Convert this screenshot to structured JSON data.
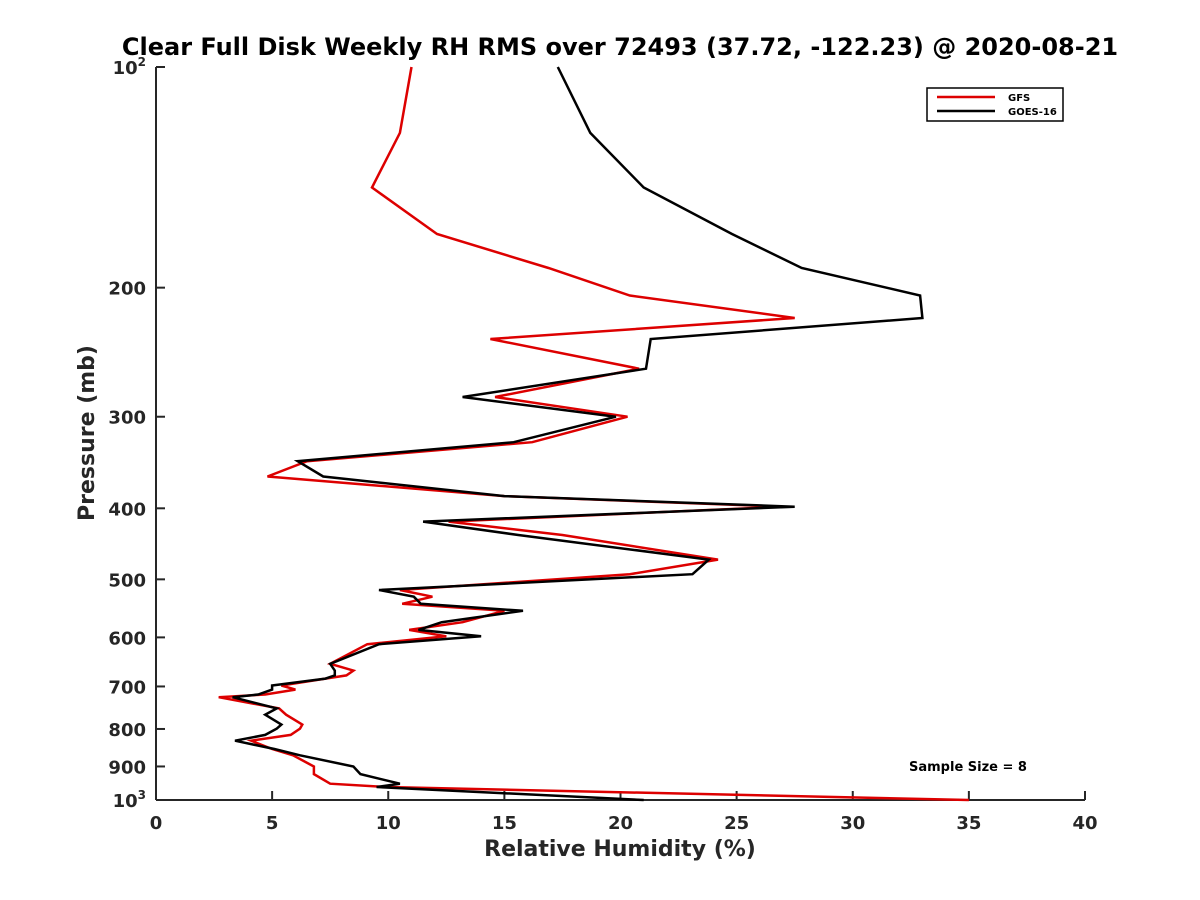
{
  "chart_data": {
    "type": "line",
    "title": "Clear Full Disk Weekly RH RMS over 72493 (37.72, -122.23) @ 2020-08-21",
    "xlabel": "Relative Humidity (%)",
    "ylabel": "Pressure (mb)",
    "xlim": [
      0,
      40
    ],
    "ylim": [
      100,
      1000
    ],
    "y_scale": "log",
    "y_reversed": true,
    "x_ticks": [
      "0",
      "5",
      "10",
      "15",
      "20",
      "25",
      "30",
      "35",
      "40"
    ],
    "y_ticks": [
      {
        "value": 100,
        "base": "10",
        "exp": "2"
      },
      {
        "value": 200,
        "label": "200"
      },
      {
        "value": 300,
        "label": "300"
      },
      {
        "value": 400,
        "label": "400"
      },
      {
        "value": 500,
        "label": "500"
      },
      {
        "value": 600,
        "label": "600"
      },
      {
        "value": 700,
        "label": "700"
      },
      {
        "value": 800,
        "label": "800"
      },
      {
        "value": 900,
        "label": "900"
      },
      {
        "value": 1000,
        "base": "10",
        "exp": "3"
      }
    ],
    "legend": {
      "placement": "top-right"
    },
    "grid": false,
    "annotation": "Sample Size = 8",
    "series": [
      {
        "name": "GFS",
        "color": "#dd0000",
        "points": [
          [
            11.0,
            100
          ],
          [
            10.5,
            123
          ],
          [
            9.3,
            146
          ],
          [
            12.1,
            169
          ],
          [
            16.9,
            188
          ],
          [
            20.4,
            205
          ],
          [
            27.5,
            220
          ],
          [
            14.4,
            235
          ],
          [
            20.8,
            258
          ],
          [
            14.6,
            282
          ],
          [
            20.3,
            300
          ],
          [
            16.2,
            325
          ],
          [
            6.5,
            345
          ],
          [
            4.8,
            362
          ],
          [
            15,
            385
          ],
          [
            27,
            398
          ],
          [
            12.6,
            417
          ],
          [
            17.5,
            435
          ],
          [
            24.2,
            470
          ],
          [
            20.4,
            492
          ],
          [
            10.5,
            517
          ],
          [
            11.9,
            528
          ],
          [
            10.6,
            540
          ],
          [
            15,
            552
          ],
          [
            13.2,
            572
          ],
          [
            10.9,
            586
          ],
          [
            12.5,
            598
          ],
          [
            9.1,
            613
          ],
          [
            7.5,
            652
          ],
          [
            8.5,
            666
          ],
          [
            8.2,
            676
          ],
          [
            7.3,
            683
          ],
          [
            5.4,
            698
          ],
          [
            6.0,
            707
          ],
          [
            4.7,
            718
          ],
          [
            2.7,
            724
          ],
          [
            5.3,
            750
          ],
          [
            5.6,
            765
          ],
          [
            6.3,
            789
          ],
          [
            6.2,
            799
          ],
          [
            5.8,
            815
          ],
          [
            4.1,
            830
          ],
          [
            5.0,
            852
          ],
          [
            5.9,
            869
          ],
          [
            6.8,
            900
          ],
          [
            6.8,
            922
          ],
          [
            7.5,
            950
          ],
          [
            9.9,
            960
          ],
          [
            35.0,
            1000
          ]
        ]
      },
      {
        "name": "GOES-16",
        "color": "#000000",
        "points": [
          [
            17.3,
            100
          ],
          [
            18.7,
            123
          ],
          [
            21.0,
            146
          ],
          [
            24.8,
            169
          ],
          [
            27.8,
            188
          ],
          [
            32.9,
            205
          ],
          [
            33.0,
            220
          ],
          [
            21.3,
            235
          ],
          [
            21.1,
            258
          ],
          [
            13.2,
            282
          ],
          [
            19.8,
            300
          ],
          [
            15.4,
            325
          ],
          [
            6.1,
            345
          ],
          [
            7.2,
            362
          ],
          [
            15,
            385
          ],
          [
            27.5,
            398
          ],
          [
            11.5,
            417
          ],
          [
            15.6,
            435
          ],
          [
            23.8,
            470
          ],
          [
            23.1,
            492
          ],
          [
            9.6,
            517
          ],
          [
            11.1,
            528
          ],
          [
            11.4,
            540
          ],
          [
            15.8,
            552
          ],
          [
            12.3,
            572
          ],
          [
            11.3,
            586
          ],
          [
            14,
            598
          ],
          [
            9.6,
            613
          ],
          [
            7.5,
            652
          ],
          [
            7.7,
            666
          ],
          [
            7.7,
            676
          ],
          [
            7.3,
            683
          ],
          [
            5.0,
            698
          ],
          [
            5.0,
            707
          ],
          [
            4.4,
            718
          ],
          [
            3.3,
            724
          ],
          [
            5.2,
            750
          ],
          [
            4.7,
            765
          ],
          [
            5.4,
            789
          ],
          [
            5.2,
            799
          ],
          [
            4.7,
            815
          ],
          [
            3.4,
            830
          ],
          [
            5.1,
            852
          ],
          [
            6.2,
            869
          ],
          [
            8.5,
            900
          ],
          [
            8.8,
            922
          ],
          [
            10.5,
            950
          ],
          [
            9.5,
            960
          ],
          [
            21.0,
            1000
          ]
        ]
      }
    ]
  }
}
